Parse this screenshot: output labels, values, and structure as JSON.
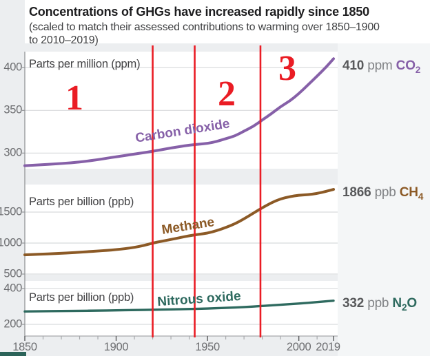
{
  "title": "Concentrations of GHGs have increased rapidly since 1850",
  "subtitle_line1": "(scaled to match their assessed contributions to warming over 1850–1900",
  "subtitle_line2": "to 2010–2019)",
  "colors": {
    "co2": "#8660a8",
    "ch4": "#8c5a26",
    "n2o": "#2e6a5f",
    "annotation_red": "#ea1c24",
    "grid": "#d8dadc",
    "axis": "#939598",
    "tick_label": "#6d6e71",
    "value_text": "#58595b",
    "unit_text": "#818386"
  },
  "x_axis": {
    "range": [
      1850,
      2019
    ],
    "major_ticks": [
      "1850",
      "1900",
      "1950",
      "2000",
      "2019"
    ],
    "major_tick_years": [
      1850,
      1900,
      1950,
      2000,
      2019
    ],
    "minor_tick_step_years": 10
  },
  "annotations": {
    "region_labels": [
      "1",
      "2",
      "3"
    ],
    "divider_years": [
      1920,
      1943,
      1979
    ]
  },
  "chart_data": [
    {
      "type": "line",
      "name": "Carbon dioxide",
      "unit_label": "Parts per million (ppm)",
      "end_value": "410",
      "end_unit": "ppm",
      "gas": {
        "pre": "CO",
        "sub": "2",
        "post": ""
      },
      "color_key": "co2",
      "ylim": [
        281.7,
        418.8
      ],
      "gridlines": [
        300,
        350,
        400
      ],
      "x": [
        1850,
        1855,
        1860,
        1865,
        1870,
        1875,
        1880,
        1885,
        1890,
        1895,
        1900,
        1905,
        1910,
        1915,
        1920,
        1925,
        1930,
        1935,
        1940,
        1945,
        1950,
        1955,
        1960,
        1965,
        1970,
        1975,
        1980,
        1985,
        1990,
        1995,
        2000,
        2005,
        2010,
        2015,
        2019
      ],
      "values": [
        285.2,
        285.8,
        286.4,
        287.1,
        287.8,
        288.6,
        289.6,
        290.8,
        292.3,
        294.0,
        295.7,
        297.2,
        298.9,
        300.4,
        302.1,
        304.0,
        306.0,
        307.6,
        309.4,
        310.3,
        311.3,
        313.5,
        316.9,
        320.0,
        325.7,
        331.1,
        338.8,
        346.1,
        354.4,
        360.9,
        369.6,
        379.8,
        390.1,
        400.8,
        410.5
      ]
    },
    {
      "type": "line",
      "name": "Methane",
      "unit_label": "Parts per billion (ppb)",
      "end_value": "1866",
      "end_unit": "ppb",
      "gas": {
        "pre": "CH",
        "sub": "4",
        "post": ""
      },
      "color_key": "ch4",
      "ylim": [
        489,
        1944
      ],
      "gridlines": [
        500,
        1000,
        1500
      ],
      "x": [
        1850,
        1855,
        1860,
        1865,
        1870,
        1875,
        1880,
        1885,
        1890,
        1895,
        1900,
        1905,
        1910,
        1915,
        1920,
        1925,
        1930,
        1935,
        1940,
        1945,
        1950,
        1955,
        1960,
        1965,
        1970,
        1975,
        1980,
        1985,
        1990,
        1995,
        2000,
        2005,
        2010,
        2015,
        2019
      ],
      "values": [
        810,
        816,
        822,
        828,
        835,
        843,
        852,
        862,
        872,
        882,
        894,
        910,
        930,
        960,
        1000,
        1030,
        1058,
        1088,
        1118,
        1140,
        1160,
        1200,
        1250,
        1310,
        1390,
        1480,
        1570,
        1650,
        1714,
        1748,
        1773,
        1780,
        1799,
        1834,
        1866
      ]
    },
    {
      "type": "line",
      "name": "Nitrous oxide",
      "unit_label": "Parts per billion (ppb)",
      "end_value": "332",
      "end_unit": "ppb",
      "gas": {
        "pre": "N",
        "sub": "2",
        "post": "O"
      },
      "color_key": "n2o",
      "ylim": [
        135,
        442
      ],
      "gridlines": [
        200,
        400
      ],
      "x": [
        1850,
        1860,
        1870,
        1880,
        1890,
        1900,
        1910,
        1920,
        1930,
        1940,
        1950,
        1960,
        1970,
        1980,
        1990,
        2000,
        2010,
        2019
      ],
      "values": [
        272,
        273,
        274.5,
        275.5,
        276.5,
        278,
        280,
        281.5,
        283.5,
        285.5,
        288,
        292,
        296,
        302.5,
        309.5,
        316,
        324,
        332
      ]
    }
  ]
}
